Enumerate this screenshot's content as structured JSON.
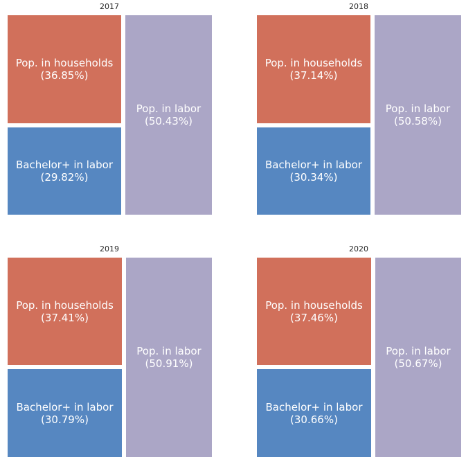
{
  "chart_data": [
    {
      "type": "treemap",
      "title": "2017",
      "colors": {
        "households": "#d1705b",
        "bachelor": "#5687c1",
        "labor": "#aba6c6"
      },
      "items": [
        {
          "name": "Pop. in households",
          "value": 36.85,
          "label": "Pop. in households\n(36.85%)"
        },
        {
          "name": "Bachelor+ in labor",
          "value": 29.82,
          "label": "Bachelor+ in labor\n(29.82%)"
        },
        {
          "name": "Pop. in labor",
          "value": 50.43,
          "label": "Pop. in labor\n(50.43%)"
        }
      ]
    },
    {
      "type": "treemap",
      "title": "2018",
      "colors": {
        "households": "#d1705b",
        "bachelor": "#5687c1",
        "labor": "#aba6c6"
      },
      "items": [
        {
          "name": "Pop. in households",
          "value": 37.14,
          "label": "Pop. in households\n(37.14%)"
        },
        {
          "name": "Bachelor+ in labor",
          "value": 30.34,
          "label": "Bachelor+ in labor\n(30.34%)"
        },
        {
          "name": "Pop. in labor",
          "value": 50.58,
          "label": "Pop. in labor\n(50.58%)"
        }
      ]
    },
    {
      "type": "treemap",
      "title": "2019",
      "colors": {
        "households": "#d1705b",
        "bachelor": "#5687c1",
        "labor": "#aba6c6"
      },
      "items": [
        {
          "name": "Pop. in households",
          "value": 37.41,
          "label": "Pop. in households\n(37.41%)"
        },
        {
          "name": "Bachelor+ in labor",
          "value": 30.79,
          "label": "Bachelor+ in labor\n(30.79%)"
        },
        {
          "name": "Pop. in labor",
          "value": 50.91,
          "label": "Pop. in labor\n(50.91%)"
        }
      ]
    },
    {
      "type": "treemap",
      "title": "2020",
      "colors": {
        "households": "#d1705b",
        "bachelor": "#5687c1",
        "labor": "#aba6c6"
      },
      "items": [
        {
          "name": "Pop. in households",
          "value": 37.46,
          "label": "Pop. in households\n(37.46%)"
        },
        {
          "name": "Bachelor+ in labor",
          "value": 30.66,
          "label": "Bachelor+ in labor\n(30.66%)"
        },
        {
          "name": "Pop. in labor",
          "value": 50.67,
          "label": "Pop. in labor\n(50.67%)"
        }
      ]
    }
  ]
}
